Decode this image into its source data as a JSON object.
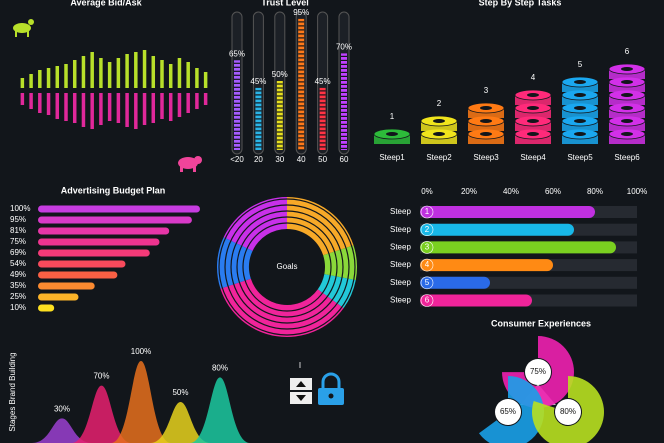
{
  "chart_data": [
    {
      "type": "bidask",
      "title": "Average Bid/Ask",
      "series": [
        {
          "color": "#b8e02a",
          "values": [
            10,
            14,
            18,
            20,
            22,
            24,
            28,
            32,
            36,
            30,
            26,
            30,
            34,
            36,
            38,
            32,
            28,
            24,
            30,
            26,
            20,
            16
          ]
        },
        {
          "color": "#e0289a",
          "values": [
            12,
            16,
            20,
            22,
            26,
            28,
            30,
            34,
            36,
            32,
            28,
            30,
            34,
            36,
            32,
            30,
            26,
            28,
            24,
            20,
            16,
            12
          ]
        }
      ]
    },
    {
      "type": "tube",
      "title": "Trust Level",
      "categories": [
        "<20",
        "20",
        "30",
        "40",
        "50",
        "60"
      ],
      "values": [
        65,
        45,
        50,
        95,
        45,
        70
      ],
      "value_labels": [
        "65%",
        "45%",
        "50%",
        "95%",
        "45%",
        "70%"
      ],
      "colors": [
        "#a65cff",
        "#2ab5e8",
        "#e8e020",
        "#ff7a1a",
        "#ff3344",
        "#c040ff"
      ]
    },
    {
      "type": "rings",
      "title": "Step By Step Tasks",
      "categories": [
        "Steep1",
        "Steep2",
        "Steep3",
        "Steep4",
        "Steep5",
        "Steep6"
      ],
      "values": [
        1,
        2,
        3,
        4,
        5,
        6
      ],
      "colors": [
        "#2dbb3a",
        "#f0e41c",
        "#ff7a14",
        "#ff2a7a",
        "#1aa8f0",
        "#d230e8"
      ]
    },
    {
      "type": "hbar",
      "title": "Advertising Budget Plan",
      "values": [
        100,
        95,
        81,
        75,
        69,
        54,
        49,
        35,
        25,
        10
      ],
      "value_labels": [
        "100%",
        "95%",
        "81%",
        "75%",
        "69%",
        "54%",
        "49%",
        "35%",
        "25%",
        "10%"
      ],
      "colors": [
        "#c63ce0",
        "#d83ac8",
        "#e636a8",
        "#ee3490",
        "#f43a78",
        "#f84a5c",
        "#fa6044",
        "#fb8a30",
        "#fcb428",
        "#fde020"
      ]
    },
    {
      "type": "donut",
      "title": "Goals",
      "values": [
        20,
        8,
        7,
        35,
        12,
        18
      ],
      "colors": [
        "#f7a928",
        "#8ad83a",
        "#22c8d8",
        "#f0249a",
        "#2a7cf0",
        "#c830e8"
      ]
    },
    {
      "type": "progress",
      "categories": [
        "Steep",
        "Steep",
        "Steep",
        "Steep",
        "Steep",
        "Steep"
      ],
      "badges": [
        "1",
        "2",
        "3",
        "4",
        "5",
        "6"
      ],
      "values": [
        80,
        70,
        90,
        60,
        30,
        50
      ],
      "colors": [
        "#c030e0",
        "#18b8e8",
        "#7ad020",
        "#ff8a14",
        "#2a6ae8",
        "#f0249a"
      ],
      "xlim": [
        0,
        100
      ],
      "xticks": [
        {
          "value": 0,
          "label": "0%"
        },
        {
          "value": 20,
          "label": "20%"
        },
        {
          "value": 40,
          "label": "40%"
        },
        {
          "value": 60,
          "label": "60%"
        },
        {
          "value": 80,
          "label": "80%"
        },
        {
          "value": 100,
          "label": "100%"
        }
      ]
    },
    {
      "type": "venn",
      "title": "Consumer Experiences",
      "values": [
        75,
        65,
        80
      ],
      "value_labels": [
        "75%",
        "65%",
        "80%"
      ],
      "colors": [
        "#f020b0",
        "#1aa0e8",
        "#b8e020"
      ]
    },
    {
      "type": "peaks",
      "title": "Stages Brand Building",
      "values": [
        30,
        70,
        100,
        50,
        80
      ],
      "value_labels": [
        "30%",
        "70%",
        "100%",
        "50%",
        "80%"
      ],
      "colors": [
        "#9b3fd0",
        "#e8206e",
        "#e8701c",
        "#e8d21c",
        "#1cc9a0"
      ]
    }
  ],
  "controls": {
    "label": "I"
  }
}
